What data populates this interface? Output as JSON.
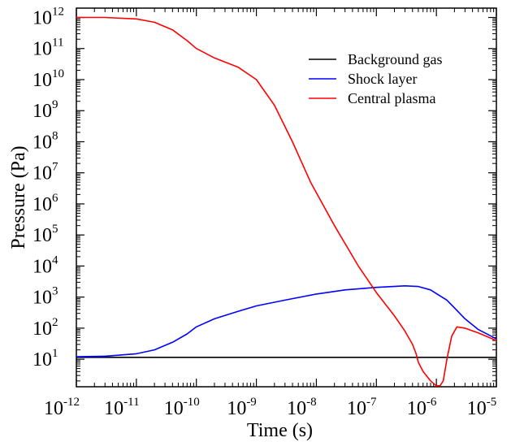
{
  "chart_data": {
    "type": "line",
    "title": "",
    "xlabel": "Time (s)",
    "ylabel": "Pressure (Pa)",
    "x_scale": "log",
    "y_scale": "log",
    "xlim": [
      1e-12,
      1e-05
    ],
    "ylim": [
      1.3,
      2000000000000.0
    ],
    "grid": false,
    "legend_position": "top-right",
    "x_ticks": [
      {
        "base": "10",
        "exp": "-12",
        "value": 1e-12
      },
      {
        "base": "10",
        "exp": "-11",
        "value": 1e-11
      },
      {
        "base": "10",
        "exp": "-10",
        "value": 1e-10
      },
      {
        "base": "10",
        "exp": "-9",
        "value": 1e-09
      },
      {
        "base": "10",
        "exp": "-8",
        "value": 1e-08
      },
      {
        "base": "10",
        "exp": "-7",
        "value": 1e-07
      },
      {
        "base": "10",
        "exp": "-6",
        "value": 1e-06
      },
      {
        "base": "10",
        "exp": "-5",
        "value": 1e-05
      }
    ],
    "y_ticks": [
      {
        "base": "10",
        "exp": "1",
        "value": 10
      },
      {
        "base": "10",
        "exp": "2",
        "value": 100
      },
      {
        "base": "10",
        "exp": "3",
        "value": 1000
      },
      {
        "base": "10",
        "exp": "4",
        "value": 10000
      },
      {
        "base": "10",
        "exp": "5",
        "value": 100000
      },
      {
        "base": "10",
        "exp": "6",
        "value": 1000000
      },
      {
        "base": "10",
        "exp": "7",
        "value": 10000000
      },
      {
        "base": "10",
        "exp": "8",
        "value": 100000000
      },
      {
        "base": "10",
        "exp": "9",
        "value": 1000000000
      },
      {
        "base": "10",
        "exp": "10",
        "value": 10000000000
      },
      {
        "base": "10",
        "exp": "11",
        "value": 100000000000
      },
      {
        "base": "10",
        "exp": "12",
        "value": 1000000000000
      }
    ],
    "series": [
      {
        "name": "Background gas",
        "color": "#000000",
        "x": [
          1e-12,
          1e-05
        ],
        "y": [
          11.5,
          11.5
        ]
      },
      {
        "name": "Shock layer",
        "color": "#0000ff",
        "x": [
          1e-12,
          3e-12,
          1e-11,
          2e-11,
          4e-11,
          7e-11,
          1e-10,
          2e-10,
          5e-10,
          1e-09,
          3e-09,
          1e-08,
          3e-08,
          1e-07,
          3e-07,
          5e-07,
          8e-07,
          1e-06,
          1.5e-06,
          2e-06,
          3e-06,
          5e-06,
          1e-05
        ],
        "y": [
          12,
          12.5,
          15,
          20,
          35,
          65,
          110,
          200,
          350,
          520,
          800,
          1250,
          1700,
          2050,
          2300,
          2200,
          1700,
          1300,
          800,
          450,
          200,
          90,
          45
        ]
      },
      {
        "name": "Central plasma",
        "color": "#ff0000",
        "x": [
          1e-12,
          3e-12,
          1e-11,
          2e-11,
          4e-11,
          7e-11,
          1e-10,
          2e-10,
          5e-10,
          1e-09,
          2e-09,
          4e-09,
          8e-09,
          2e-08,
          5e-08,
          1e-07,
          2e-07,
          3e-07,
          4e-07,
          4.6e-07,
          5e-07,
          6e-07,
          8e-07,
          1e-06,
          1.15e-06,
          1.3e-06,
          1.5e-06,
          1.8e-06,
          2.2e-06,
          3e-06,
          5e-06,
          1e-05
        ],
        "y": [
          1000000000000.0,
          1000000000000.0,
          900000000000.0,
          700000000000.0,
          400000000000.0,
          180000000000.0,
          100000000000.0,
          50000000000.0,
          25000000000.0,
          10000000000.0,
          1500000000.0,
          100000000.0,
          5000000.0,
          200000.0,
          10000.0,
          1400,
          250,
          80,
          30,
          15,
          8,
          4,
          2,
          1.4,
          1.4,
          2,
          10,
          55,
          110,
          100,
          70,
          40
        ]
      }
    ]
  }
}
